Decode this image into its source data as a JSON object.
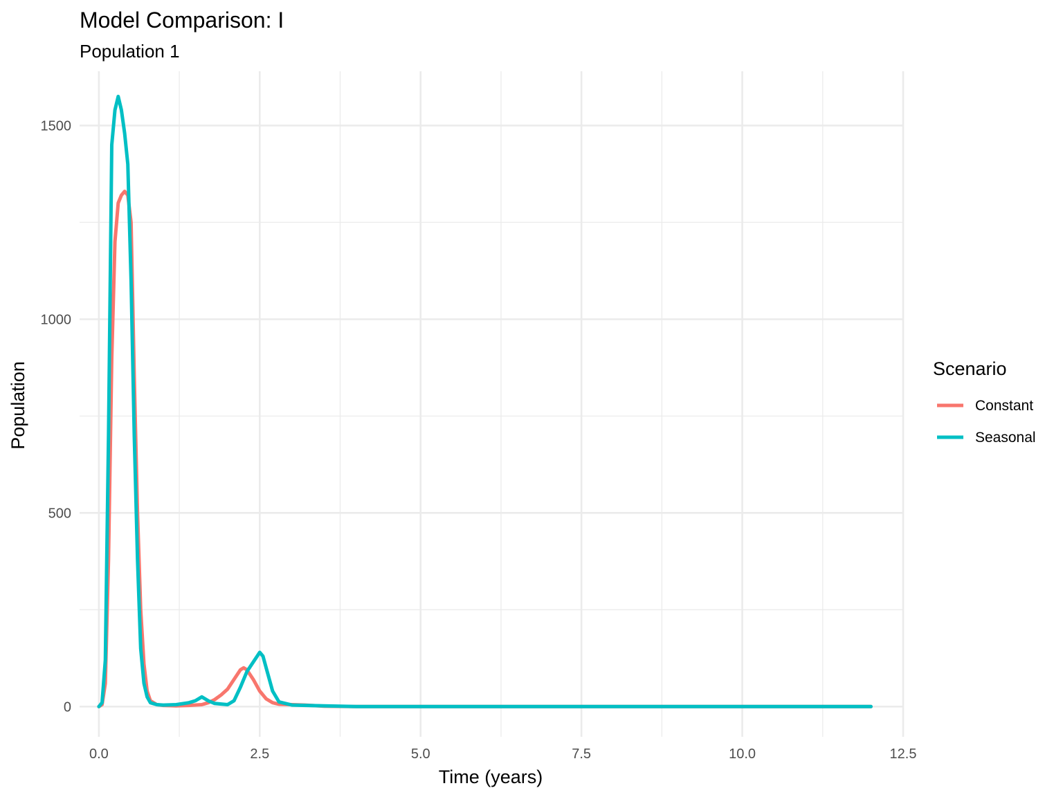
{
  "chart_data": {
    "type": "line",
    "title": "Model Comparison: I",
    "subtitle": "Population 1",
    "xlabel": "Time (years)",
    "ylabel": "Population",
    "xlim": [
      -0.3,
      12.5
    ],
    "ylim": [
      -78,
      1640
    ],
    "x_ticks": [
      0.0,
      2.5,
      5.0,
      7.5,
      10.0,
      12.5
    ],
    "x_tick_labels": [
      "0.0",
      "2.5",
      "5.0",
      "7.5",
      "10.0",
      "12.5"
    ],
    "y_ticks": [
      0,
      500,
      1000,
      1500
    ],
    "y_tick_labels": [
      "0",
      "500",
      "1000",
      "1500"
    ],
    "grid": true,
    "legend": {
      "title": "Scenario",
      "position": "right"
    },
    "series": [
      {
        "name": "Constant",
        "color": "#F8766D",
        "x": [
          0.0,
          0.05,
          0.1,
          0.15,
          0.2,
          0.25,
          0.3,
          0.35,
          0.4,
          0.45,
          0.5,
          0.55,
          0.6,
          0.65,
          0.7,
          0.75,
          0.8,
          0.9,
          1.0,
          1.2,
          1.4,
          1.6,
          1.7,
          1.8,
          1.9,
          2.0,
          2.1,
          2.2,
          2.25,
          2.3,
          2.4,
          2.5,
          2.6,
          2.7,
          2.8,
          3.0,
          3.2,
          3.5,
          4.0,
          6.0,
          8.0,
          10.0,
          12.0
        ],
        "y": [
          0,
          5,
          60,
          380,
          900,
          1200,
          1300,
          1320,
          1330,
          1320,
          1250,
          850,
          500,
          250,
          110,
          40,
          15,
          5,
          3,
          2,
          3,
          5,
          10,
          18,
          30,
          45,
          70,
          95,
          100,
          95,
          70,
          40,
          20,
          10,
          6,
          5,
          4,
          1,
          0,
          0,
          0,
          0,
          0
        ]
      },
      {
        "name": "Seasonal",
        "color": "#00BFC4",
        "x": [
          0.0,
          0.05,
          0.1,
          0.15,
          0.2,
          0.25,
          0.3,
          0.35,
          0.4,
          0.45,
          0.5,
          0.55,
          0.6,
          0.65,
          0.7,
          0.75,
          0.8,
          0.9,
          1.0,
          1.2,
          1.4,
          1.5,
          1.6,
          1.7,
          1.8,
          2.0,
          2.1,
          2.2,
          2.3,
          2.4,
          2.5,
          2.55,
          2.6,
          2.7,
          2.8,
          3.0,
          3.5,
          4.0,
          6.0,
          8.0,
          10.0,
          12.0
        ],
        "y": [
          0,
          10,
          120,
          700,
          1450,
          1540,
          1575,
          1540,
          1480,
          1400,
          1100,
          700,
          380,
          150,
          60,
          25,
          10,
          5,
          4,
          5,
          10,
          15,
          25,
          15,
          8,
          5,
          15,
          50,
          90,
          115,
          140,
          130,
          100,
          40,
          12,
          4,
          2,
          0,
          0,
          0,
          0,
          0
        ]
      }
    ]
  }
}
